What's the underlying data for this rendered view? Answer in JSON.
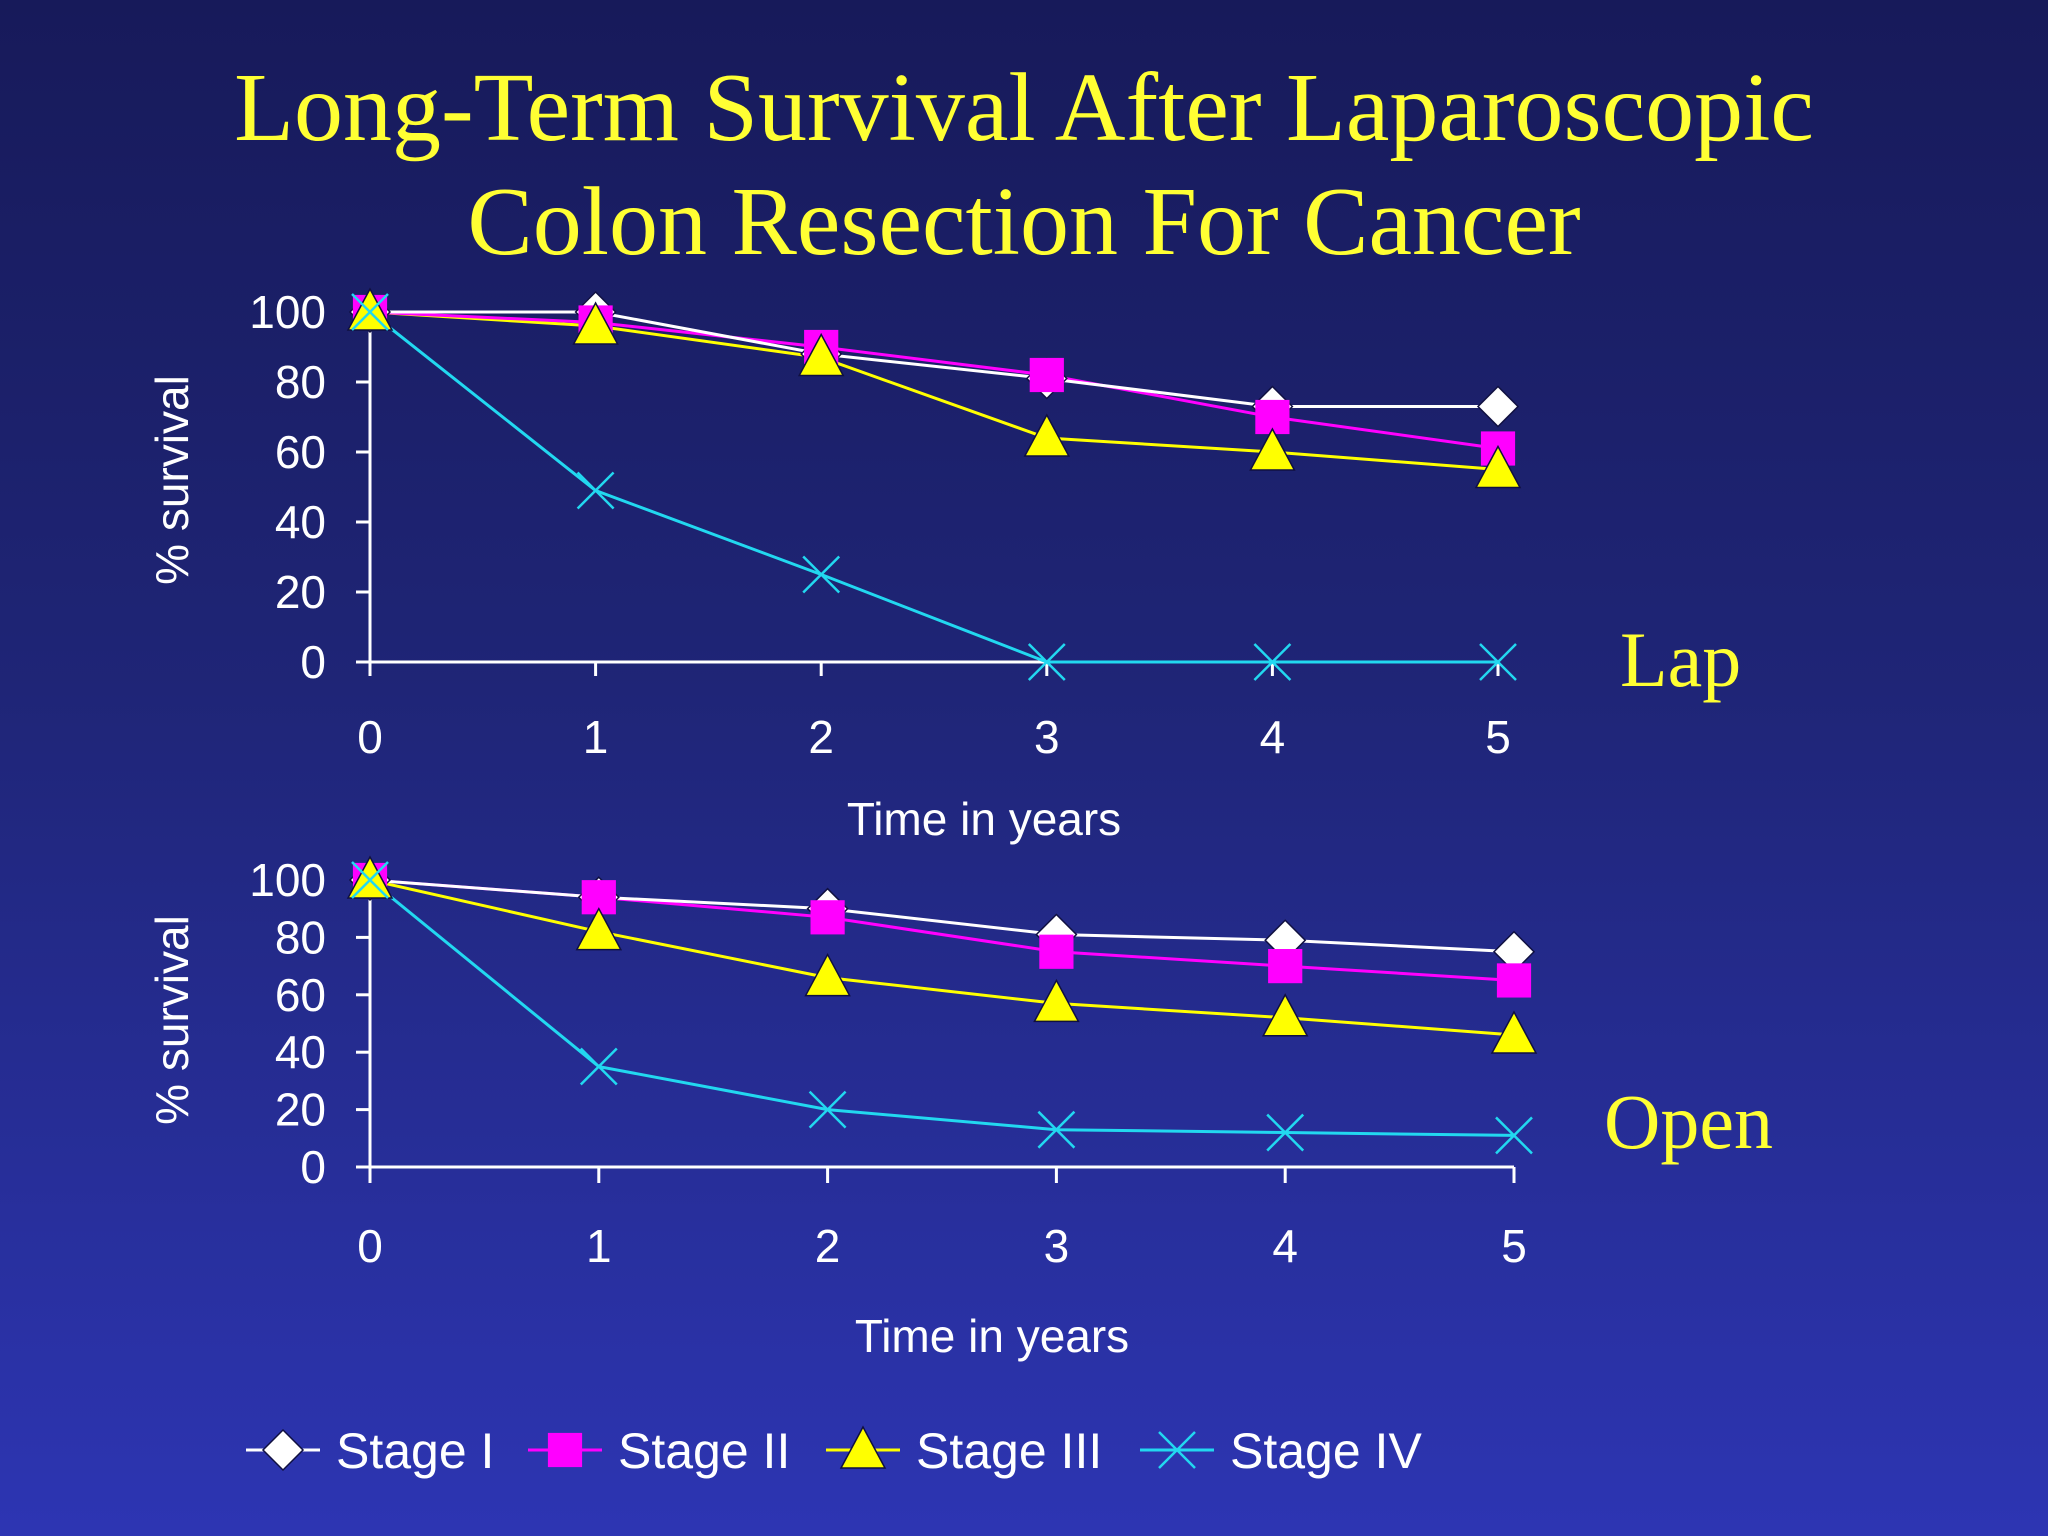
{
  "slide": {
    "title_line1": "Long-Term Survival After Laparoscopic",
    "title_line2": "Colon Resection For Cancer",
    "background_top": "#171a5a",
    "background_bottom": "#2d35b3",
    "title_color": "#ffff33"
  },
  "chart_data": [
    {
      "type": "line",
      "panel": "Lap",
      "label": "Lap",
      "xlabel": "Time in years",
      "ylabel": "% survival",
      "x": [
        0,
        1,
        2,
        3,
        4,
        5
      ],
      "xlim": [
        0,
        5
      ],
      "ylim": [
        0,
        100
      ],
      "yticks": [
        0,
        20,
        40,
        60,
        80,
        100
      ],
      "grid": false,
      "series": [
        {
          "name": "Stage I",
          "marker": "diamond",
          "color": "#ffffff",
          "values": [
            100,
            100,
            88,
            81,
            73,
            73
          ]
        },
        {
          "name": "Stage II",
          "marker": "square",
          "color": "#ff00ff",
          "values": [
            100,
            97,
            90,
            82,
            70,
            61
          ]
        },
        {
          "name": "Stage III",
          "marker": "triangle",
          "color": "#ffff00",
          "values": [
            100,
            96,
            87,
            64,
            60,
            55
          ]
        },
        {
          "name": "Stage IV",
          "marker": "x",
          "color": "#22d8f0",
          "values": [
            100,
            49,
            25,
            0,
            0,
            0
          ]
        }
      ]
    },
    {
      "type": "line",
      "panel": "Open",
      "label": "Open",
      "xlabel": "Time in years",
      "ylabel": "% survival",
      "x": [
        0,
        1,
        2,
        3,
        4,
        5
      ],
      "xlim": [
        0,
        5
      ],
      "ylim": [
        0,
        100
      ],
      "yticks": [
        0,
        20,
        40,
        60,
        80,
        100
      ],
      "grid": false,
      "series": [
        {
          "name": "Stage I",
          "marker": "diamond",
          "color": "#ffffff",
          "values": [
            100,
            94,
            90,
            81,
            79,
            75
          ]
        },
        {
          "name": "Stage II",
          "marker": "square",
          "color": "#ff00ff",
          "values": [
            100,
            94,
            87,
            75,
            70,
            65
          ]
        },
        {
          "name": "Stage III",
          "marker": "triangle",
          "color": "#ffff00",
          "values": [
            100,
            82,
            66,
            57,
            52,
            46
          ]
        },
        {
          "name": "Stage IV",
          "marker": "x",
          "color": "#22d8f0",
          "values": [
            100,
            35,
            20,
            13,
            12,
            11
          ]
        }
      ]
    }
  ],
  "legend": {
    "placement": "bottom",
    "items": [
      {
        "label": "Stage I",
        "marker": "diamond",
        "color": "#ffffff"
      },
      {
        "label": "Stage II",
        "marker": "square",
        "color": "#ff00ff"
      },
      {
        "label": "Stage III",
        "marker": "triangle",
        "color": "#ffff00"
      },
      {
        "label": "Stage IV",
        "marker": "x",
        "color": "#22d8f0"
      }
    ]
  }
}
